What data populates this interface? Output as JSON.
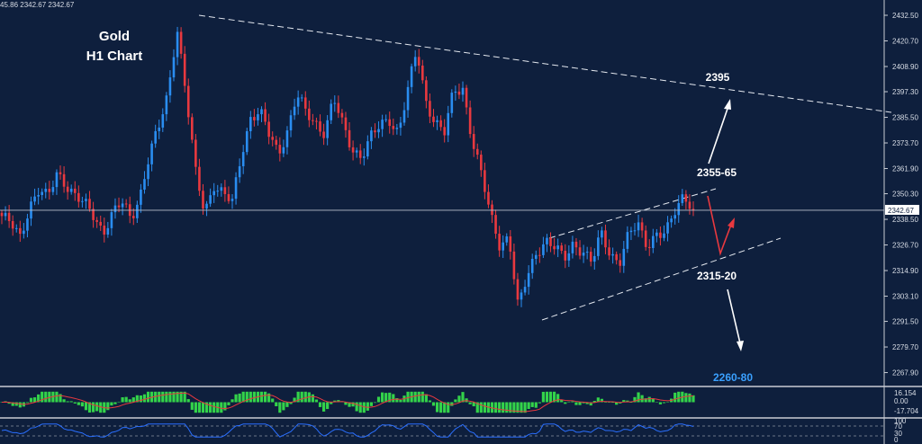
{
  "header": {
    "ohlc_readout": "45.86 2342.67 2342.67"
  },
  "labels": {
    "title_line1": "Gold",
    "title_line2": "H1 Chart"
  },
  "colors": {
    "background": "#0e1f3d",
    "bull_candle": "#2a8df0",
    "bear_candle": "#e8393f",
    "macd_hist": "#33d34a",
    "macd_signal": "#e8393f",
    "rsi_line": "#2a6fff",
    "annotation_blue": "#3aa0ff",
    "arrow_white": "#ffffff",
    "arrow_red": "#e8393f"
  },
  "chart_data": {
    "type": "candlestick",
    "symbol": "Gold",
    "timeframe": "H1",
    "current_price": 2342.67,
    "y_ticks": [
      2432.5,
      2420.7,
      2408.9,
      2397.3,
      2385.5,
      2373.7,
      2361.9,
      2350.3,
      2338.5,
      2326.7,
      2314.9,
      2303.1,
      2291.5,
      2279.7,
      2267.9
    ],
    "current_price_label": "2342.67",
    "annotations": [
      {
        "text": "2395",
        "price": 2395
      },
      {
        "text": "2355-65",
        "price": 2360
      },
      {
        "text": "2315-20",
        "price": 2317.5
      },
      {
        "text": "2260-80",
        "price": 2270
      }
    ],
    "close_path": [
      2340,
      2336,
      2330,
      2345,
      2352,
      2348,
      2360,
      2355,
      2349,
      2345,
      2340,
      2333,
      2341,
      2346,
      2339,
      2350,
      2368,
      2380,
      2396,
      2428,
      2395,
      2360,
      2342,
      2355,
      2350,
      2346,
      2369,
      2386,
      2388,
      2377,
      2369,
      2380,
      2396,
      2387,
      2383,
      2379,
      2394,
      2381,
      2371,
      2368,
      2376,
      2381,
      2385,
      2379,
      2397,
      2416,
      2393,
      2384,
      2378,
      2397,
      2399,
      2376,
      2359,
      2340,
      2327,
      2331,
      2297,
      2312,
      2324,
      2329,
      2325,
      2320,
      2328,
      2324,
      2318,
      2332,
      2323,
      2319,
      2331,
      2336,
      2327,
      2332,
      2331,
      2342,
      2351,
      2343
    ],
    "indicators": {
      "macd": {
        "ticks": [
          "16.154",
          "0.00",
          "-17.704"
        ]
      },
      "rsi": {
        "ticks": [
          "100",
          "70",
          "30",
          "0"
        ]
      }
    }
  }
}
